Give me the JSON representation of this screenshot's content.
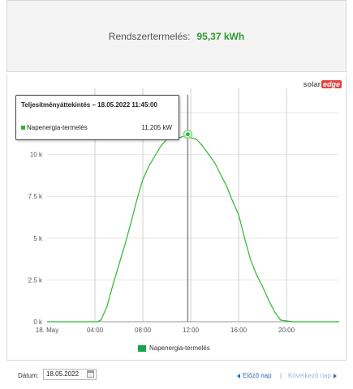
{
  "summary": {
    "label": "Rendszertermelés:",
    "value": "95,37 kWh"
  },
  "brand": {
    "solar": "solar",
    "edge": "edge"
  },
  "tooltip": {
    "title": "Teljesítményáttekintés – 18.05.2022 11:45:00",
    "series": "Napenergia-termelés",
    "value": "11,205 kW"
  },
  "legend": {
    "label": "Napenergia-termelés"
  },
  "footer": {
    "date_label": "Dátum:",
    "date_value": "18.05.2022",
    "prev": "Előző nap",
    "separator": "|",
    "next": "Következő nap"
  },
  "colors": {
    "line": "#2eb82e",
    "value": "#2e9a2e",
    "link": "#2a6eb8"
  },
  "chart_data": {
    "type": "line",
    "x_tick_labels": [
      "18. May",
      "04:00",
      "08:00",
      "12:00",
      "16:00",
      "20:00"
    ],
    "x_ticks_hours": [
      0,
      4,
      8,
      12,
      16,
      20
    ],
    "y_tick_labels": [
      "0 k",
      "2.5 k",
      "5 k",
      "7.5 k",
      "10 k",
      "12.5 k"
    ],
    "y_ticks": [
      0,
      2.5,
      5,
      7.5,
      10,
      12.5
    ],
    "ylim": [
      0,
      12.5
    ],
    "xlim_hours": [
      0,
      24.4
    ],
    "grid": true,
    "legend_position": "bottom",
    "highlight": {
      "hour": 11.75,
      "value": 11.205
    },
    "series": [
      {
        "name": "Napenergia-termelés",
        "x": [
          0,
          4.2,
          4.5,
          5,
          5.5,
          6,
          6.5,
          7,
          7.5,
          8,
          8.5,
          9,
          9.5,
          10,
          10.5,
          11,
          11.5,
          11.75,
          12,
          12.5,
          13,
          13.5,
          14,
          14.5,
          15,
          15.5,
          16,
          16.5,
          17,
          17.5,
          18,
          18.5,
          19,
          19.5,
          20,
          20.5,
          21,
          24.4
        ],
        "y": [
          0,
          0,
          0.1,
          0.9,
          2.2,
          3.4,
          4.6,
          5.9,
          7.3,
          8.5,
          9.3,
          9.9,
          10.5,
          10.9,
          11.0,
          11.0,
          11.1,
          11.205,
          11.0,
          10.9,
          10.5,
          10.0,
          9.5,
          8.8,
          8.1,
          7.2,
          6.4,
          5.0,
          3.7,
          2.8,
          2.1,
          1.3,
          0.6,
          0.1,
          0.05,
          0,
          0,
          0
        ]
      }
    ]
  }
}
